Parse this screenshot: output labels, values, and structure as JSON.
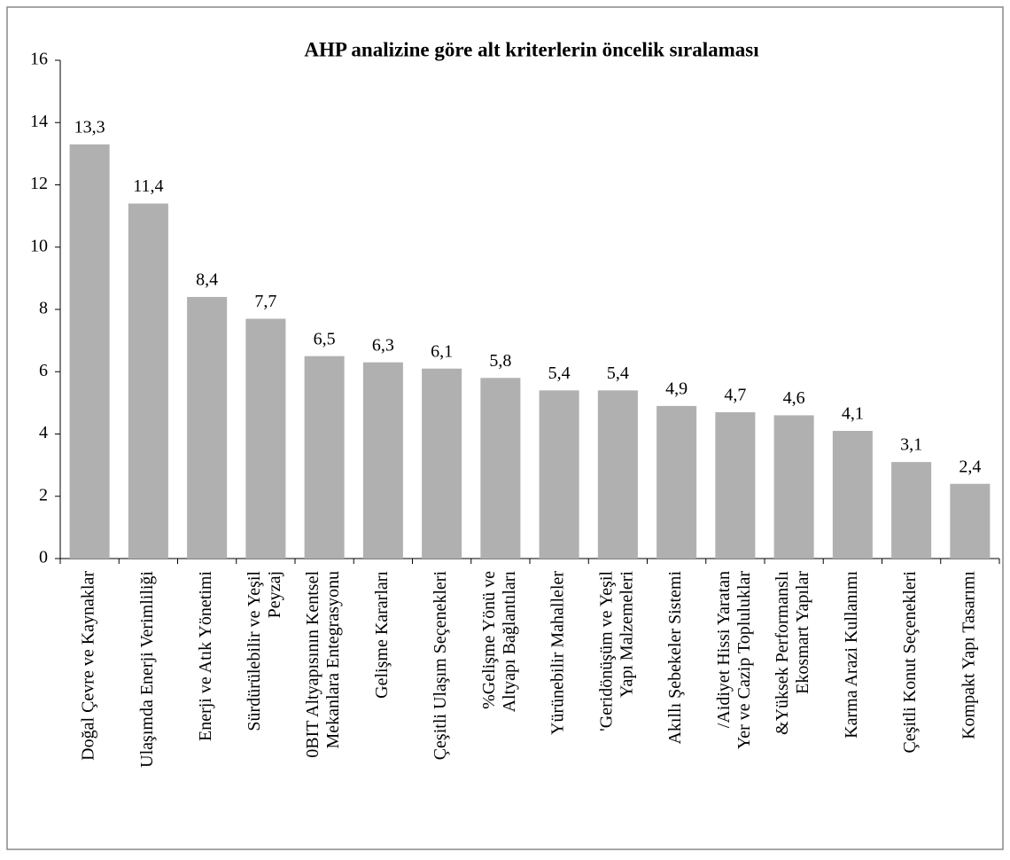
{
  "chart_data": {
    "type": "bar",
    "title": "AHP analizine göre alt kriterlerin öncelik sıralaması",
    "categories": [
      [
        "Doğal Çevre ve Kaynaklar"
      ],
      [
        "Ulaşımda Enerji Verimliliği"
      ],
      [
        "Enerji ve Atık Yönetimi"
      ],
      [
        "Sürdürülebilir ve Yeşil",
        "Peyzaj"
      ],
      [
        "0BIT Altyapısının Kentsel",
        "Mekanlara Entegrasyonu"
      ],
      [
        "Gelişme Kararları"
      ],
      [
        "Çeşitli Ulaşım Seçenekleri"
      ],
      [
        "%Gelişme Yönü ve",
        "Altyapı Bağlantıları"
      ],
      [
        "Yürünebilir Mahalleler"
      ],
      [
        "'Geridönüşüm ve Yeşil",
        "Yapı Malzemeleri"
      ],
      [
        "Akıllı Şebekeler Sistemi"
      ],
      [
        "/Aidiyet Hissi Yaratan",
        "Yer ve Cazip Topluluklar"
      ],
      [
        "&Yüksek Performanslı",
        "Ekosmart Yapılar"
      ],
      [
        "Karma Arazi Kullanımı"
      ],
      [
        "Çeşitli Konut Seçenekleri"
      ],
      [
        "Kompakt Yapı Tasarımı"
      ]
    ],
    "values": [
      13.3,
      11.4,
      8.4,
      7.7,
      6.5,
      6.3,
      6.1,
      5.8,
      5.4,
      5.4,
      4.9,
      4.7,
      4.6,
      4.1,
      3.1,
      2.4
    ],
    "value_labels": [
      "13,3",
      "11,4",
      "8,4",
      "7,7",
      "6,5",
      "6,3",
      "6,1",
      "5,8",
      "5,4",
      "5,4",
      "4,9",
      "4,7",
      "4,6",
      "4,1",
      "3,1",
      "2,4"
    ],
    "color": "#b0b0b0",
    "ylim": [
      0,
      16
    ],
    "yticks": [
      0,
      2,
      4,
      6,
      8,
      10,
      12,
      14,
      16
    ],
    "grid": false
  }
}
